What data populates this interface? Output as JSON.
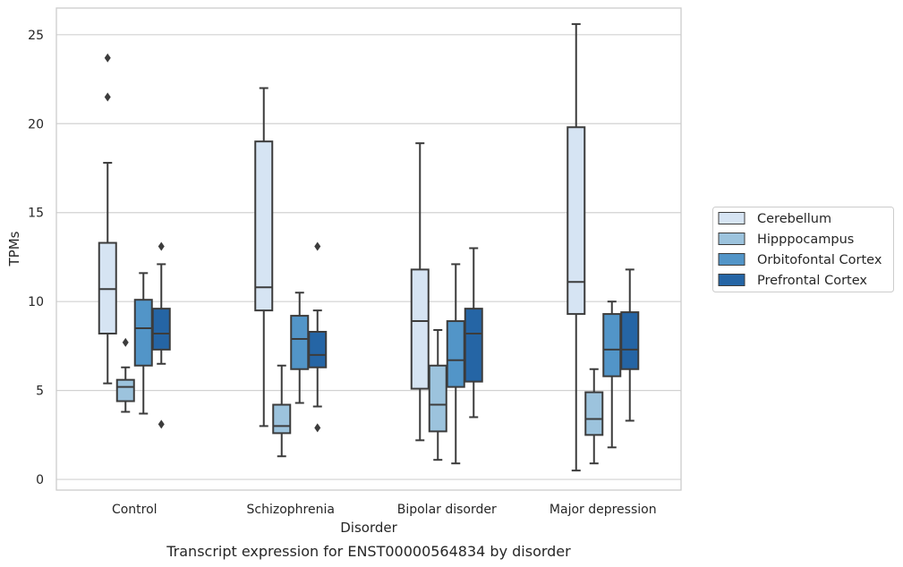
{
  "caption": "Transcript expression for ENST00000564834 by disorder",
  "chart_data": {
    "type": "box",
    "xlabel": "Disorder",
    "ylabel": "TPMs",
    "ylim": [
      -0.6,
      26.5
    ],
    "yticks": [
      0,
      5,
      10,
      15,
      20,
      25
    ],
    "grid": "horizontal",
    "legend_position": "right",
    "categories": [
      "Control",
      "Schizophrenia",
      "Bipolar disorder",
      "Major depression"
    ],
    "series": [
      {
        "name": "Cerebellum",
        "color": "#d6e4f3",
        "boxes": [
          {
            "whislo": 5.4,
            "q1": 8.2,
            "med": 10.7,
            "q3": 13.3,
            "whishi": 17.8,
            "fliers": [
              21.5,
              23.7
            ]
          },
          {
            "whislo": 3.0,
            "q1": 9.5,
            "med": 10.8,
            "q3": 19.0,
            "whishi": 22.0,
            "fliers": []
          },
          {
            "whislo": 2.2,
            "q1": 5.1,
            "med": 8.9,
            "q3": 11.8,
            "whishi": 18.9,
            "fliers": []
          },
          {
            "whislo": 0.5,
            "q1": 9.3,
            "med": 11.1,
            "q3": 19.8,
            "whishi": 25.6,
            "fliers": []
          }
        ]
      },
      {
        "name": "Hipppocampus",
        "color": "#9cc3dd",
        "boxes": [
          {
            "whislo": 3.8,
            "q1": 4.4,
            "med": 5.2,
            "q3": 5.6,
            "whishi": 6.3,
            "fliers": [
              7.7
            ]
          },
          {
            "whislo": 1.3,
            "q1": 2.6,
            "med": 3.0,
            "q3": 4.2,
            "whishi": 6.4,
            "fliers": []
          },
          {
            "whislo": 1.1,
            "q1": 2.7,
            "med": 4.2,
            "q3": 6.4,
            "whishi": 8.4,
            "fliers": []
          },
          {
            "whislo": 0.9,
            "q1": 2.5,
            "med": 3.4,
            "q3": 4.9,
            "whishi": 6.2,
            "fliers": []
          }
        ]
      },
      {
        "name": "Orbitofontal Cortex",
        "color": "#5295c8",
        "boxes": [
          {
            "whislo": 3.7,
            "q1": 6.4,
            "med": 8.5,
            "q3": 10.1,
            "whishi": 11.6,
            "fliers": []
          },
          {
            "whislo": 4.3,
            "q1": 6.2,
            "med": 7.9,
            "q3": 9.2,
            "whishi": 10.5,
            "fliers": []
          },
          {
            "whislo": 0.9,
            "q1": 5.2,
            "med": 6.7,
            "q3": 8.9,
            "whishi": 12.1,
            "fliers": []
          },
          {
            "whislo": 1.8,
            "q1": 5.8,
            "med": 7.3,
            "q3": 9.3,
            "whishi": 10.0,
            "fliers": []
          }
        ]
      },
      {
        "name": "Prefrontal Cortex",
        "color": "#2565a5",
        "boxes": [
          {
            "whislo": 6.5,
            "q1": 7.3,
            "med": 8.2,
            "q3": 9.6,
            "whishi": 12.1,
            "fliers": [
              13.1,
              3.1
            ]
          },
          {
            "whislo": 4.1,
            "q1": 6.3,
            "med": 7.0,
            "q3": 8.3,
            "whishi": 9.5,
            "fliers": [
              13.1,
              2.9
            ]
          },
          {
            "whislo": 3.5,
            "q1": 5.5,
            "med": 8.2,
            "q3": 9.6,
            "whishi": 13.0,
            "fliers": []
          },
          {
            "whislo": 3.3,
            "q1": 6.2,
            "med": 7.3,
            "q3": 9.4,
            "whishi": 11.8,
            "fliers": []
          }
        ]
      }
    ]
  }
}
